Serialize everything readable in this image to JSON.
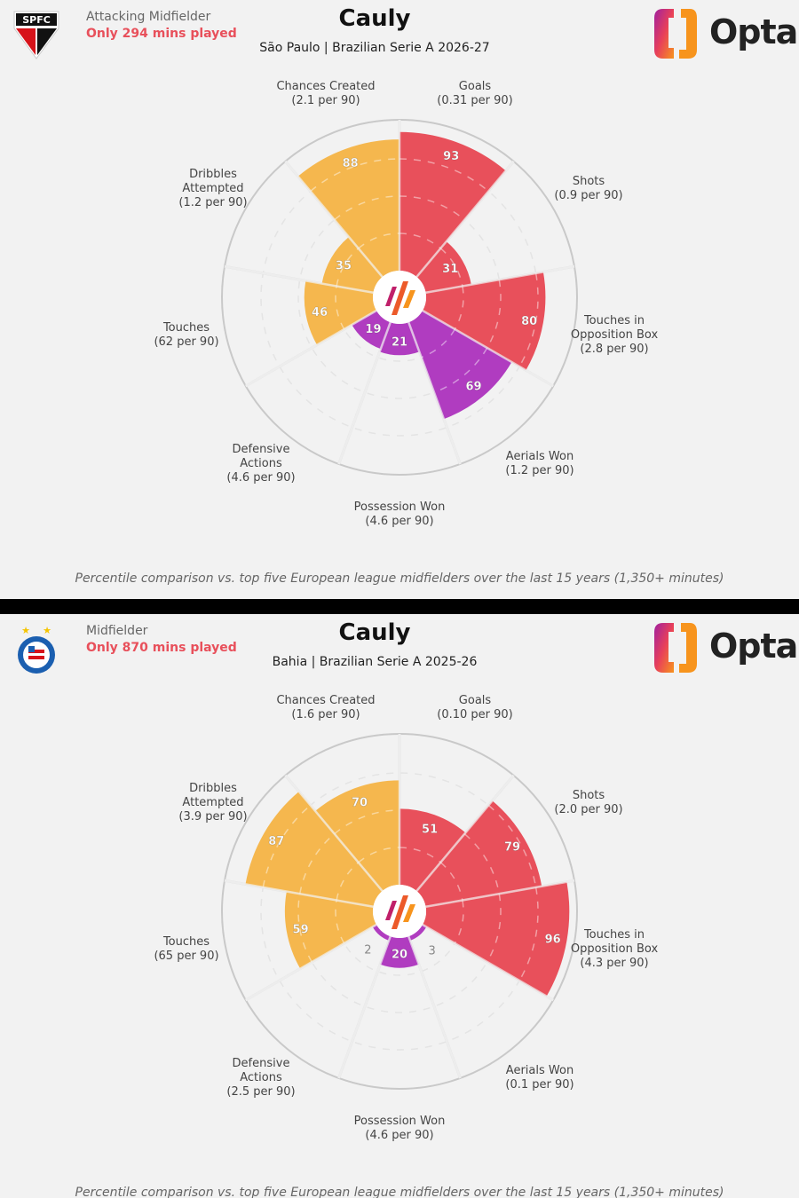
{
  "panels": [
    {
      "club_badge": {
        "icon": "sao-paulo-badge",
        "text": "SPFC"
      },
      "role": "Attacking Midfielder",
      "minutes_note": "Only 294 mins played",
      "player": "Cauly",
      "subtitle": "São Paulo | Brazilian Serie A 2026-27",
      "brand": "Opta",
      "footnote": "Percentile comparison vs. top five European league midfielders over the last 15 years (1,350+ minutes)"
    },
    {
      "club_badge": {
        "icon": "bahia-badge"
      },
      "role": "Midfielder",
      "minutes_note": "Only 870 mins played",
      "player": "Cauly",
      "subtitle": "Bahia | Brazilian Serie A 2025-26",
      "brand": "Opta",
      "footnote": "Percentile comparison vs. top five European league midfielders over the last 15 years (1,350+ minutes)"
    }
  ],
  "colors": {
    "attacking": "#e8505b",
    "possession": "#f5b74e",
    "defending": "#b03cc0",
    "accent_text": "#e8505b"
  },
  "chart_data": [
    {
      "type": "pizza",
      "ylim": [
        0,
        100
      ],
      "categories": [
        {
          "name": [
            "Goals"
          ],
          "per90": "(0.31 per 90)",
          "group": "attacking"
        },
        {
          "name": [
            "Shots"
          ],
          "per90": "(0.9 per 90)",
          "group": "attacking"
        },
        {
          "name": [
            "Touches in",
            "Opposition Box"
          ],
          "per90": "(2.8 per 90)",
          "group": "attacking"
        },
        {
          "name": [
            "Aerials Won"
          ],
          "per90": "(1.2 per 90)",
          "group": "defending"
        },
        {
          "name": [
            "Possession Won"
          ],
          "per90": "(4.6 per 90)",
          "group": "defending"
        },
        {
          "name": [
            "Defensive",
            "Actions"
          ],
          "per90": "(4.6 per 90)",
          "group": "defending"
        },
        {
          "name": [
            "Touches"
          ],
          "per90": "(62 per 90)",
          "group": "possession"
        },
        {
          "name": [
            "Dribbles",
            "Attempted"
          ],
          "per90": "(1.2 per 90)",
          "group": "possession"
        },
        {
          "name": [
            "Chances Created"
          ],
          "per90": "(2.1 per 90)",
          "group": "possession"
        }
      ],
      "values": [
        93,
        31,
        80,
        69,
        21,
        19,
        46,
        35,
        88
      ]
    },
    {
      "type": "pizza",
      "ylim": [
        0,
        100
      ],
      "categories": [
        {
          "name": [
            "Goals"
          ],
          "per90": "(0.10 per 90)",
          "group": "attacking"
        },
        {
          "name": [
            "Shots"
          ],
          "per90": "(2.0 per 90)",
          "group": "attacking"
        },
        {
          "name": [
            "Touches in",
            "Opposition Box"
          ],
          "per90": "(4.3 per 90)",
          "group": "attacking"
        },
        {
          "name": [
            "Aerials Won"
          ],
          "per90": "(0.1 per 90)",
          "group": "defending"
        },
        {
          "name": [
            "Possession Won"
          ],
          "per90": "(4.6 per 90)",
          "group": "defending"
        },
        {
          "name": [
            "Defensive",
            "Actions"
          ],
          "per90": "(2.5 per 90)",
          "group": "defending"
        },
        {
          "name": [
            "Touches"
          ],
          "per90": "(65 per 90)",
          "group": "possession"
        },
        {
          "name": [
            "Dribbles",
            "Attempted"
          ],
          "per90": "(3.9 per 90)",
          "group": "possession"
        },
        {
          "name": [
            "Chances Created"
          ],
          "per90": "(1.6 per 90)",
          "group": "possession"
        }
      ],
      "values": [
        51,
        79,
        96,
        3,
        20,
        2,
        59,
        87,
        70
      ]
    }
  ]
}
